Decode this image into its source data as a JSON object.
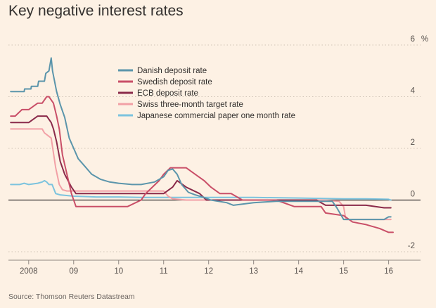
{
  "title": "Key negative interest rates",
  "source": "Source: Thomson Reuters Datastream",
  "chart_data": {
    "type": "line",
    "title": "Key negative interest rates",
    "ylabel": "%",
    "ylim": [
      -2,
      6
    ],
    "xlim": [
      2007.55,
      2016.35
    ],
    "y_ticks": [
      -2,
      0,
      2,
      4,
      6
    ],
    "x_ticks": [
      {
        "label": "2008",
        "pos": 2008.0
      },
      {
        "label": "09",
        "pos": 2009.0
      },
      {
        "label": "10",
        "pos": 2010.0
      },
      {
        "label": "11",
        "pos": 2011.0
      },
      {
        "label": "12",
        "pos": 2012.0
      },
      {
        "label": "13",
        "pos": 2013.0
      },
      {
        "label": "14",
        "pos": 2014.0
      },
      {
        "label": "15",
        "pos": 2015.0
      },
      {
        "label": "16",
        "pos": 2016.0
      }
    ],
    "grid": "dotted horizontal",
    "legend_position": "top-center",
    "colors": {
      "danish": "#5b95ab",
      "swedish": "#c94f68",
      "ecb": "#8a2a4a",
      "swiss": "#f2a0a6",
      "japanese": "#7cc3de"
    },
    "series": [
      {
        "key": "danish",
        "name": "Danish deposit rate",
        "x": [
          2007.6,
          2007.9,
          2007.91,
          2008.05,
          2008.06,
          2008.2,
          2008.22,
          2008.35,
          2008.38,
          2008.45,
          2008.5,
          2008.53,
          2008.62,
          2008.7,
          2008.8,
          2008.9,
          2009.0,
          2009.1,
          2009.25,
          2009.4,
          2009.6,
          2009.8,
          2010.0,
          2010.3,
          2010.5,
          2010.8,
          2011.0,
          2011.1,
          2011.2,
          2011.3,
          2011.4,
          2011.55,
          2011.7,
          2011.9,
          2012.05,
          2012.4,
          2012.55,
          2013.0,
          2013.5,
          2014.0,
          2014.35,
          2014.5,
          2014.6,
          2014.75,
          2014.85,
          2015.0,
          2015.1,
          2015.5,
          2015.9,
          2016.0,
          2016.05
        ],
        "y": [
          4.2,
          4.2,
          4.3,
          4.3,
          4.4,
          4.4,
          4.6,
          4.6,
          4.9,
          5.0,
          5.5,
          5.0,
          4.2,
          3.7,
          3.2,
          2.4,
          2.0,
          1.6,
          1.3,
          1.0,
          0.8,
          0.7,
          0.65,
          0.6,
          0.6,
          0.7,
          0.9,
          1.15,
          1.2,
          1.0,
          0.6,
          0.3,
          0.2,
          0.1,
          0.0,
          -0.1,
          -0.2,
          -0.1,
          -0.05,
          -0.05,
          -0.05,
          -0.05,
          -0.05,
          -0.05,
          -0.3,
          -0.75,
          -0.75,
          -0.75,
          -0.75,
          -0.65,
          -0.65
        ]
      },
      {
        "key": "swedish",
        "name": "Swedish deposit rate",
        "x": [
          2007.6,
          2007.7,
          2007.85,
          2008.0,
          2008.2,
          2008.3,
          2008.4,
          2008.45,
          2008.55,
          2008.62,
          2008.68,
          2008.75,
          2008.85,
          2008.95,
          2009.05,
          2009.2,
          2009.6,
          2009.8,
          2010.2,
          2010.5,
          2010.6,
          2010.75,
          2010.9,
          2011.0,
          2011.15,
          2011.3,
          2011.5,
          2011.7,
          2011.9,
          2012.05,
          2012.25,
          2012.5,
          2012.75,
          2013.0,
          2013.5,
          2013.9,
          2014.2,
          2014.5,
          2014.6,
          2015.0,
          2015.2,
          2015.5,
          2015.8,
          2016.0,
          2016.1
        ],
        "y": [
          3.25,
          3.25,
          3.5,
          3.5,
          3.75,
          3.75,
          4.0,
          4.0,
          3.75,
          3.25,
          2.75,
          1.75,
          1.0,
          0.25,
          -0.25,
          -0.25,
          -0.25,
          -0.25,
          -0.25,
          0.0,
          0.25,
          0.5,
          0.75,
          1.0,
          1.25,
          1.25,
          1.25,
          1.0,
          0.75,
          0.5,
          0.25,
          0.25,
          0.0,
          0.0,
          0.0,
          -0.25,
          -0.25,
          -0.25,
          -0.5,
          -0.6,
          -0.85,
          -0.95,
          -1.1,
          -1.25,
          -1.25
        ]
      },
      {
        "key": "ecb",
        "name": "ECB deposit rate",
        "x": [
          2007.6,
          2008.0,
          2008.2,
          2008.4,
          2008.5,
          2008.55,
          2008.62,
          2008.7,
          2008.8,
          2008.95,
          2009.05,
          2009.2,
          2009.5,
          2010.0,
          2010.5,
          2011.0,
          2011.2,
          2011.3,
          2011.5,
          2011.8,
          2011.95,
          2012.05,
          2012.5,
          2013.0,
          2013.5,
          2014.0,
          2014.2,
          2014.4,
          2014.5,
          2014.6,
          2015.0,
          2015.5,
          2015.9,
          2016.0,
          2016.05
        ],
        "y": [
          3.0,
          3.0,
          3.25,
          3.25,
          3.0,
          2.75,
          2.25,
          1.5,
          1.0,
          0.5,
          0.25,
          0.25,
          0.25,
          0.25,
          0.25,
          0.25,
          0.5,
          0.75,
          0.5,
          0.25,
          0.0,
          0.0,
          0.0,
          0.0,
          0.0,
          0.0,
          0.0,
          0.0,
          -0.1,
          -0.2,
          -0.2,
          -0.2,
          -0.3,
          -0.3,
          -0.3
        ]
      },
      {
        "key": "swiss",
        "name": "Swiss three-month target rate",
        "x": [
          2007.6,
          2008.0,
          2008.3,
          2008.35,
          2008.5,
          2008.6,
          2008.68,
          2008.75,
          2008.85,
          2009.0,
          2009.5,
          2010.0,
          2010.5,
          2011.0,
          2011.05,
          2011.1,
          2011.2,
          2011.5,
          2012.0,
          2013.0,
          2014.0,
          2014.5,
          2014.9,
          2015.0,
          2015.05,
          2015.5,
          2016.0,
          2016.05
        ],
        "y": [
          2.75,
          2.75,
          2.75,
          2.6,
          2.4,
          1.25,
          0.6,
          0.4,
          0.35,
          0.35,
          0.35,
          0.35,
          0.35,
          0.35,
          0.25,
          0.15,
          0.05,
          0.0,
          0.0,
          0.0,
          0.0,
          0.0,
          -0.05,
          -0.25,
          -0.75,
          -0.75,
          -0.75,
          -0.75
        ]
      },
      {
        "key": "japanese",
        "name": "Japanese commercial paper one month rate",
        "x": [
          2007.6,
          2007.8,
          2007.9,
          2008.0,
          2008.2,
          2008.3,
          2008.35,
          2008.4,
          2008.45,
          2008.52,
          2008.6,
          2008.7,
          2009.0,
          2009.5,
          2010.0,
          2010.5,
          2011.0,
          2012.0,
          2013.0,
          2014.0,
          2015.0,
          2015.5,
          2016.0,
          2016.05
        ],
        "y": [
          0.6,
          0.6,
          0.65,
          0.6,
          0.65,
          0.7,
          0.75,
          0.7,
          0.6,
          0.6,
          0.25,
          0.2,
          0.15,
          0.12,
          0.12,
          0.1,
          0.1,
          0.1,
          0.1,
          0.08,
          0.05,
          0.05,
          0.03,
          0.0
        ]
      }
    ]
  }
}
